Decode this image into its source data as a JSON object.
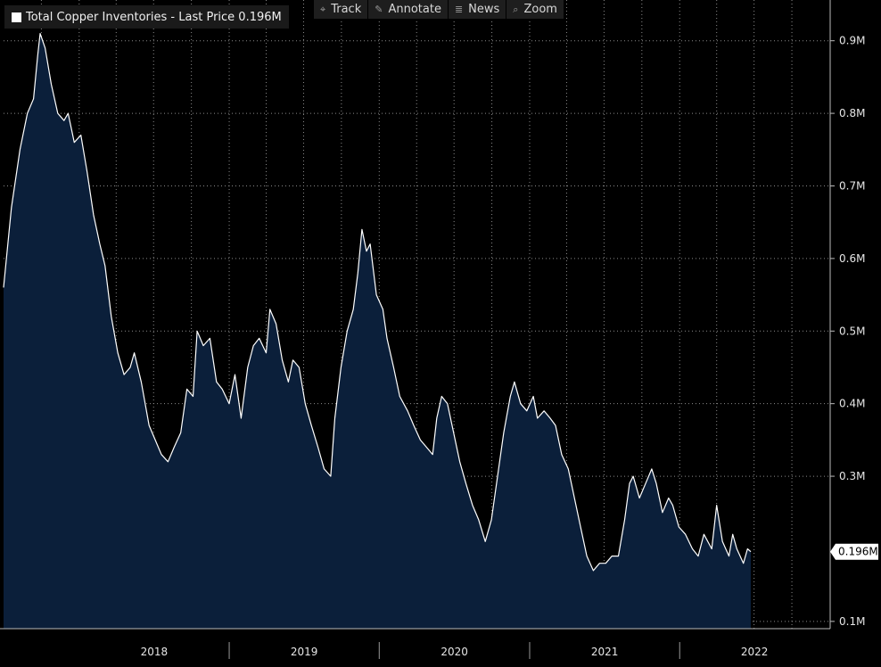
{
  "legend": {
    "label": "Total Copper Inventories - Last Price 0.196M"
  },
  "toolbar": {
    "track": "Track",
    "annotate": "Annotate",
    "news": "News",
    "zoom": "Zoom"
  },
  "colors": {
    "fill": "#0b1f3a",
    "line": "#ffffff",
    "grid": "#8a8a8a",
    "background": "#000000"
  },
  "chart_data": {
    "type": "area",
    "title": "Total Copper Inventories",
    "last_value_label": "0.196M",
    "last_value": 0.196,
    "y_unit": "M",
    "y_ticks": [
      0.9,
      0.8,
      0.7,
      0.6,
      0.5,
      0.4,
      0.3,
      0.1
    ],
    "y_tick_labels": [
      "0.9M",
      "0.8M",
      "0.7M",
      "0.6M",
      "0.5M",
      "0.4M",
      "0.3M",
      "0.1M"
    ],
    "ylim": [
      0.09,
      0.95
    ],
    "x_tick_labels": [
      "2018",
      "2019",
      "2020",
      "2021",
      "2022"
    ],
    "xlim": [
      "2017-07-01",
      "2022-12-31"
    ],
    "grid": true,
    "series": [
      {
        "points": [
          [
            "2017-07-01",
            0.56
          ],
          [
            "2017-07-20",
            0.67
          ],
          [
            "2017-08-10",
            0.75
          ],
          [
            "2017-08-28",
            0.8
          ],
          [
            "2017-09-12",
            0.82
          ],
          [
            "2017-09-22",
            0.88
          ],
          [
            "2017-09-28",
            0.91
          ],
          [
            "2017-10-10",
            0.89
          ],
          [
            "2017-10-25",
            0.84
          ],
          [
            "2017-11-10",
            0.8
          ],
          [
            "2017-11-25",
            0.79
          ],
          [
            "2017-12-05",
            0.8
          ],
          [
            "2017-12-20",
            0.76
          ],
          [
            "2018-01-05",
            0.77
          ],
          [
            "2018-01-20",
            0.72
          ],
          [
            "2018-02-05",
            0.66
          ],
          [
            "2018-02-20",
            0.62
          ],
          [
            "2018-03-05",
            0.59
          ],
          [
            "2018-03-20",
            0.52
          ],
          [
            "2018-04-05",
            0.47
          ],
          [
            "2018-04-20",
            0.44
          ],
          [
            "2018-05-05",
            0.45
          ],
          [
            "2018-05-15",
            0.47
          ],
          [
            "2018-06-01",
            0.43
          ],
          [
            "2018-06-20",
            0.37
          ],
          [
            "2018-07-05",
            0.35
          ],
          [
            "2018-07-20",
            0.33
          ],
          [
            "2018-08-05",
            0.32
          ],
          [
            "2018-08-20",
            0.34
          ],
          [
            "2018-09-05",
            0.36
          ],
          [
            "2018-09-20",
            0.42
          ],
          [
            "2018-10-05",
            0.41
          ],
          [
            "2018-10-15",
            0.5
          ],
          [
            "2018-10-30",
            0.48
          ],
          [
            "2018-11-15",
            0.49
          ],
          [
            "2018-12-01",
            0.43
          ],
          [
            "2018-12-15",
            0.42
          ],
          [
            "2019-01-01",
            0.4
          ],
          [
            "2019-01-15",
            0.44
          ],
          [
            "2019-01-30",
            0.38
          ],
          [
            "2019-02-15",
            0.45
          ],
          [
            "2019-03-01",
            0.48
          ],
          [
            "2019-03-15",
            0.49
          ],
          [
            "2019-04-01",
            0.47
          ],
          [
            "2019-04-10",
            0.53
          ],
          [
            "2019-04-25",
            0.51
          ],
          [
            "2019-05-10",
            0.46
          ],
          [
            "2019-05-25",
            0.43
          ],
          [
            "2019-06-05",
            0.46
          ],
          [
            "2019-06-20",
            0.45
          ],
          [
            "2019-07-05",
            0.4
          ],
          [
            "2019-07-20",
            0.37
          ],
          [
            "2019-08-05",
            0.34
          ],
          [
            "2019-08-20",
            0.31
          ],
          [
            "2019-09-05",
            0.3
          ],
          [
            "2019-09-15",
            0.38
          ],
          [
            "2019-09-30",
            0.45
          ],
          [
            "2019-10-15",
            0.5
          ],
          [
            "2019-10-30",
            0.53
          ],
          [
            "2019-11-10",
            0.58
          ],
          [
            "2019-11-20",
            0.64
          ],
          [
            "2019-12-01",
            0.61
          ],
          [
            "2019-12-10",
            0.62
          ],
          [
            "2019-12-25",
            0.55
          ],
          [
            "2020-01-10",
            0.53
          ],
          [
            "2020-01-20",
            0.49
          ],
          [
            "2020-02-05",
            0.45
          ],
          [
            "2020-02-20",
            0.41
          ],
          [
            "2020-03-10",
            0.39
          ],
          [
            "2020-03-25",
            0.37
          ],
          [
            "2020-04-10",
            0.35
          ],
          [
            "2020-04-25",
            0.34
          ],
          [
            "2020-05-10",
            0.33
          ],
          [
            "2020-05-20",
            0.38
          ],
          [
            "2020-06-01",
            0.41
          ],
          [
            "2020-06-15",
            0.4
          ],
          [
            "2020-06-30",
            0.36
          ],
          [
            "2020-07-15",
            0.32
          ],
          [
            "2020-07-30",
            0.29
          ],
          [
            "2020-08-15",
            0.26
          ],
          [
            "2020-08-30",
            0.24
          ],
          [
            "2020-09-15",
            0.21
          ],
          [
            "2020-09-30",
            0.24
          ],
          [
            "2020-10-15",
            0.3
          ],
          [
            "2020-10-30",
            0.36
          ],
          [
            "2020-11-15",
            0.41
          ],
          [
            "2020-11-25",
            0.43
          ],
          [
            "2020-12-10",
            0.4
          ],
          [
            "2020-12-25",
            0.39
          ],
          [
            "2021-01-10",
            0.41
          ],
          [
            "2021-01-20",
            0.38
          ],
          [
            "2021-02-05",
            0.39
          ],
          [
            "2021-02-20",
            0.38
          ],
          [
            "2021-03-05",
            0.37
          ],
          [
            "2021-03-20",
            0.33
          ],
          [
            "2021-04-05",
            0.31
          ],
          [
            "2021-04-20",
            0.27
          ],
          [
            "2021-05-05",
            0.23
          ],
          [
            "2021-05-20",
            0.19
          ],
          [
            "2021-06-05",
            0.17
          ],
          [
            "2021-06-20",
            0.18
          ],
          [
            "2021-07-05",
            0.18
          ],
          [
            "2021-07-20",
            0.19
          ],
          [
            "2021-08-05",
            0.19
          ],
          [
            "2021-08-20",
            0.24
          ],
          [
            "2021-09-01",
            0.29
          ],
          [
            "2021-09-10",
            0.3
          ],
          [
            "2021-09-25",
            0.27
          ],
          [
            "2021-10-10",
            0.29
          ],
          [
            "2021-10-25",
            0.31
          ],
          [
            "2021-11-05",
            0.29
          ],
          [
            "2021-11-20",
            0.25
          ],
          [
            "2021-12-05",
            0.27
          ],
          [
            "2021-12-15",
            0.26
          ],
          [
            "2021-12-30",
            0.23
          ],
          [
            "2022-01-15",
            0.22
          ],
          [
            "2022-02-01",
            0.2
          ],
          [
            "2022-02-15",
            0.19
          ],
          [
            "2022-03-01",
            0.22
          ],
          [
            "2022-03-20",
            0.2
          ],
          [
            "2022-04-01",
            0.26
          ],
          [
            "2022-04-15",
            0.21
          ],
          [
            "2022-05-01",
            0.19
          ],
          [
            "2022-05-10",
            0.22
          ],
          [
            "2022-05-20",
            0.2
          ],
          [
            "2022-06-05",
            0.18
          ],
          [
            "2022-06-15",
            0.2
          ],
          [
            "2022-06-23",
            0.196
          ]
        ]
      }
    ]
  }
}
